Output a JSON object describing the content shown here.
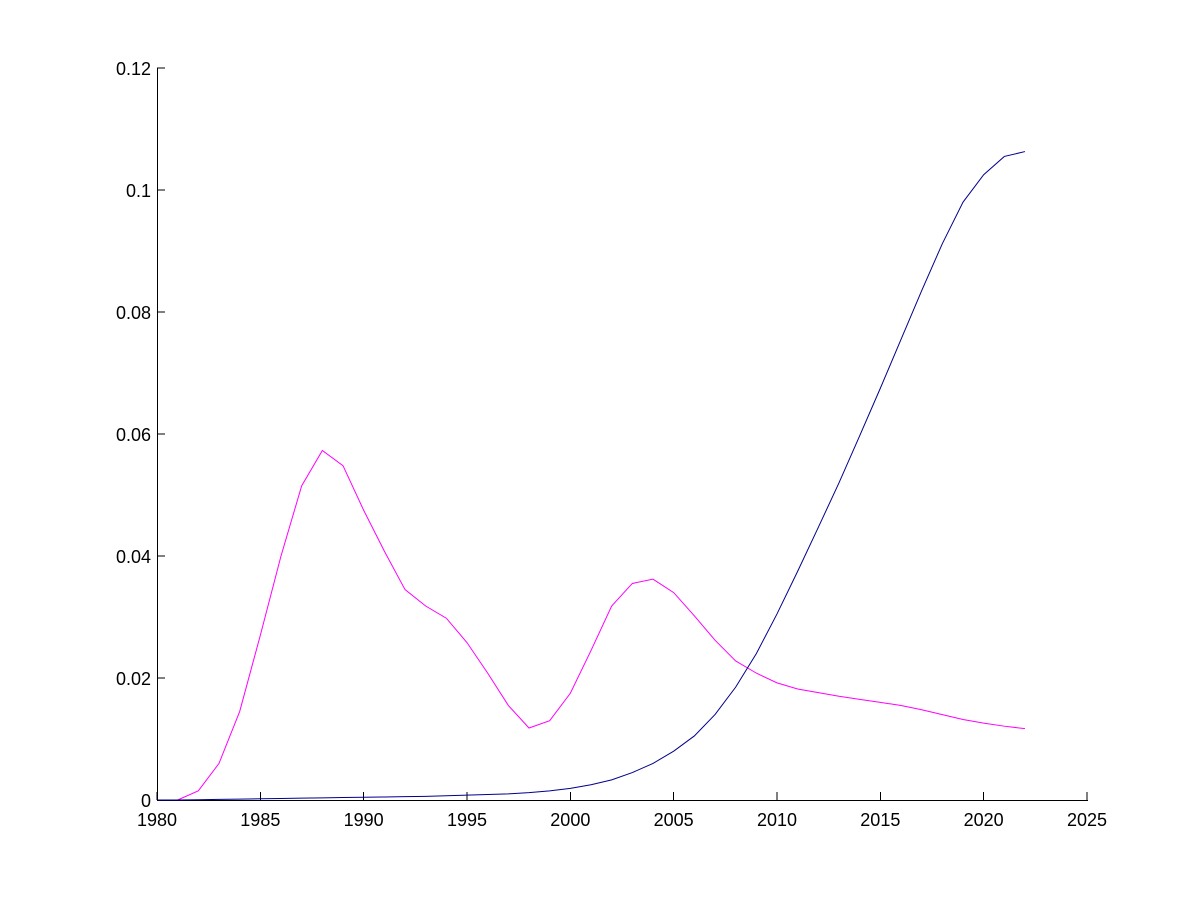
{
  "chart_data": {
    "type": "line",
    "title": "",
    "xlabel": "",
    "ylabel": "",
    "xlim": [
      1980,
      2025
    ],
    "ylim": [
      0,
      0.12
    ],
    "grid": false,
    "legend": "none",
    "x_ticks": [
      "1980",
      "1985",
      "1990",
      "1995",
      "2000",
      "2005",
      "2010",
      "2015",
      "2020",
      "2025"
    ],
    "y_ticks": [
      "0",
      "0.02",
      "0.04",
      "0.06",
      "0.08",
      "0.1",
      "0.12"
    ],
    "x_tick_values": [
      1980,
      1985,
      1990,
      1995,
      2000,
      2005,
      2010,
      2015,
      2020,
      2025
    ],
    "y_tick_values": [
      0,
      0.02,
      0.04,
      0.06,
      0.08,
      0.1,
      0.12
    ],
    "x": [
      1980,
      1981,
      1982,
      1983,
      1984,
      1985,
      1986,
      1987,
      1988,
      1989,
      1990,
      1991,
      1992,
      1993,
      1994,
      1995,
      1996,
      1997,
      1998,
      1999,
      2000,
      2001,
      2002,
      2003,
      2004,
      2005,
      2006,
      2007,
      2008,
      2009,
      2010,
      2011,
      2012,
      2013,
      2014,
      2015,
      2016,
      2017,
      2018,
      2019,
      2020,
      2021,
      2022
    ],
    "series": [
      {
        "color": "#ff00ff",
        "values": [
          0,
          0,
          0.0015,
          0.006,
          0.0145,
          0.027,
          0.04,
          0.0515,
          0.0573,
          0.0548,
          0.0475,
          0.0408,
          0.0345,
          0.0318,
          0.0298,
          0.0258,
          0.0208,
          0.0155,
          0.0118,
          0.013,
          0.0175,
          0.0245,
          0.0318,
          0.0355,
          0.0362,
          0.034,
          0.0302,
          0.0262,
          0.0228,
          0.0208,
          0.0192,
          0.0182,
          0.0176,
          0.017,
          0.0165,
          0.016,
          0.0155,
          0.0148,
          0.014,
          0.0132,
          0.0126,
          0.0121,
          0.0117
        ]
      },
      {
        "color": "#00008b",
        "values": [
          0,
          0,
          5e-05,
          0.0001,
          0.00015,
          0.0002,
          0.00025,
          0.0003,
          0.00035,
          0.0004,
          0.00045,
          0.0005,
          0.00055,
          0.0006,
          0.0007,
          0.0008,
          0.0009,
          0.001,
          0.0012,
          0.0015,
          0.0019,
          0.0025,
          0.0033,
          0.0045,
          0.006,
          0.008,
          0.0105,
          0.014,
          0.0185,
          0.024,
          0.0305,
          0.0375,
          0.0447,
          0.052,
          0.0597,
          0.0675,
          0.0755,
          0.0835,
          0.0912,
          0.098,
          0.1025,
          0.1055,
          0.1063
        ]
      }
    ]
  }
}
